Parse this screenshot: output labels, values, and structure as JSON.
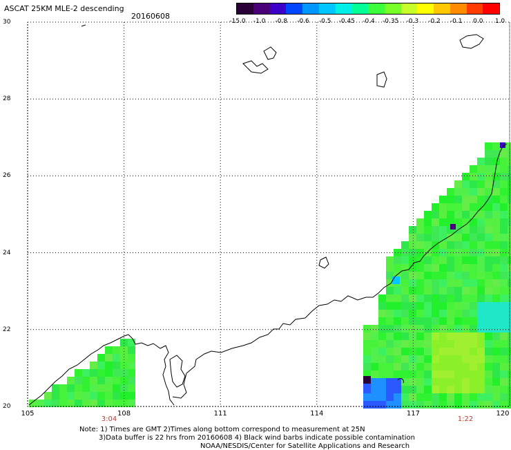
{
  "title": "ASCAT 25KM MLE-2 descending",
  "date": "20160608",
  "colorbar": {
    "colors": [
      "#2a0038",
      "#4a0078",
      "#3c00c8",
      "#0046ff",
      "#0096ff",
      "#00c8ff",
      "#00f0e8",
      "#00ff96",
      "#3cff3c",
      "#78ff28",
      "#c8ff28",
      "#ffff00",
      "#ffc800",
      "#ff8c00",
      "#ff3c00",
      "#ff0000"
    ],
    "ticks": [
      "-15.0",
      "-1.0",
      "-0.8",
      "-0.6",
      "-0.5",
      "-0.45",
      "-0.4",
      "-0.35",
      "-0.3",
      "-0.2",
      "-0.1",
      "0.0",
      "1.0"
    ]
  },
  "lat_labels": [
    "30",
    "28",
    "26",
    "24",
    "22",
    "20"
  ],
  "lon_labels": [
    "105",
    "108",
    "111",
    "114",
    "117",
    "120"
  ],
  "times": [
    {
      "label": "3:04"
    },
    {
      "label": "1:22"
    }
  ],
  "notes": [
    "Note: 1) Times are GMT 2)Times along bottom correspond to measurement at 25N",
    "3)Data buffer is 22 hrs from 20160608 4) Black wind barbs indicate possible contamination",
    "NOAA/NESDIS/Center for Satellite Applications and Research"
  ]
}
